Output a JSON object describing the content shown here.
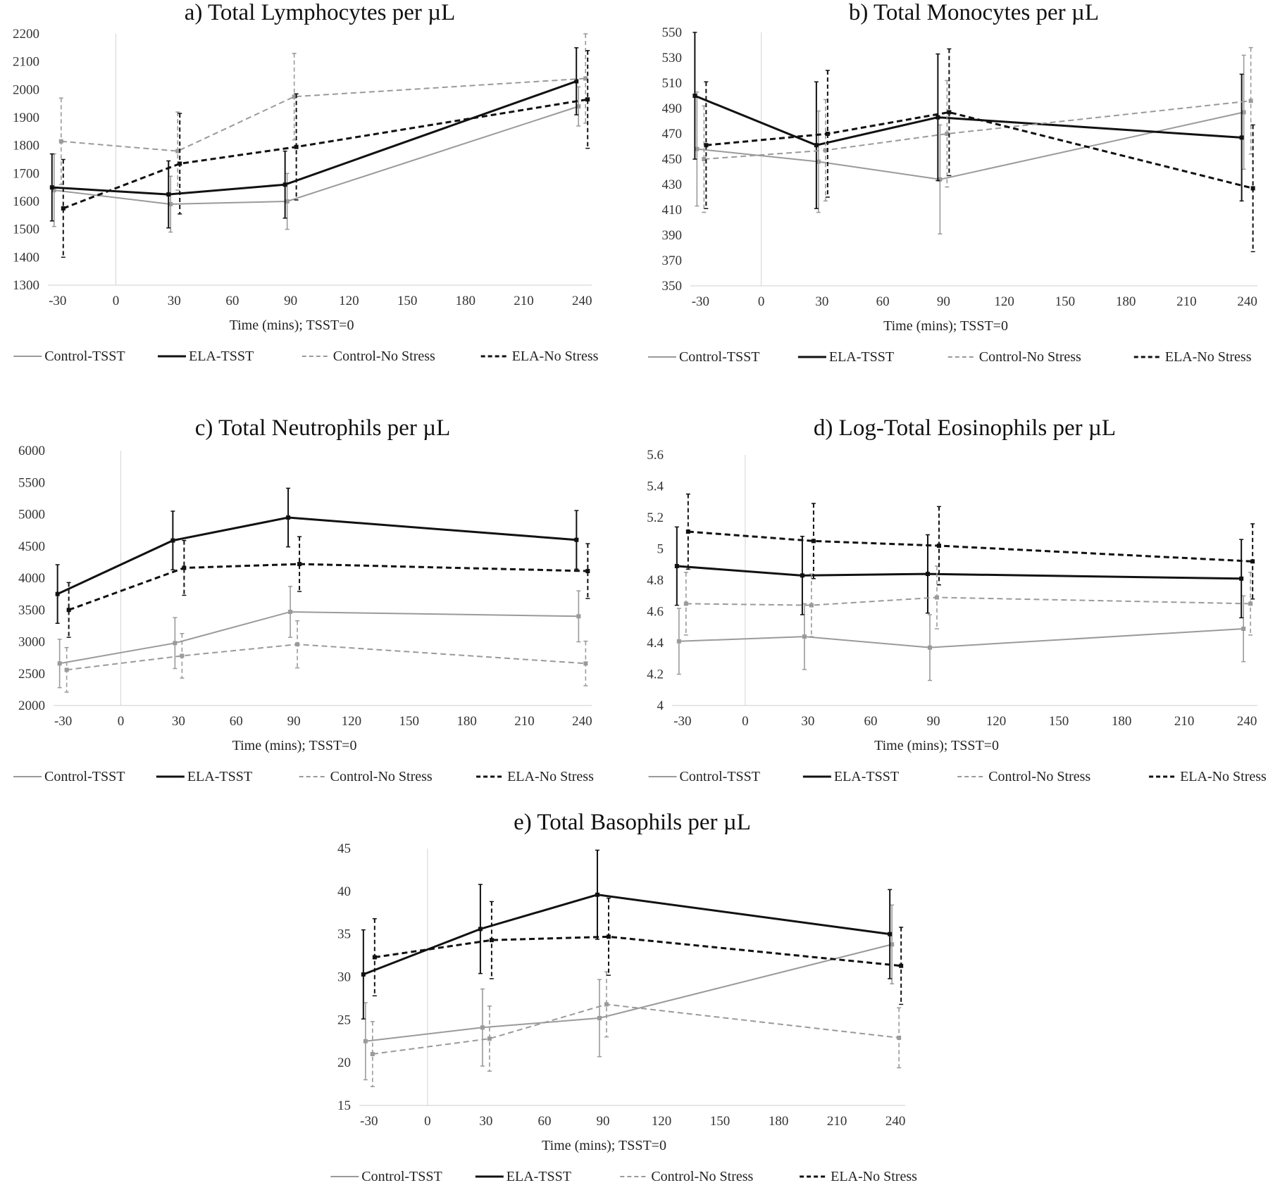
{
  "series_styles": {
    "Control-TSST": {
      "color": "#9a9a9a",
      "dashed": false
    },
    "ELA-TSST": {
      "color": "#111111",
      "dashed": false
    },
    "Control-No Stress": {
      "color": "#9a9a9a",
      "dashed": true
    },
    "ELA-No Stress": {
      "color": "#111111",
      "dashed": true
    }
  },
  "chart_data": [
    {
      "type": "line",
      "title": "a) Total Lymphocytes per µL",
      "xlabel": "Time (mins); TSST=0",
      "ylabel": "",
      "x": [
        -30,
        30,
        90,
        240
      ],
      "xticks": [
        -30,
        0,
        30,
        60,
        90,
        120,
        150,
        180,
        210,
        240
      ],
      "ylim": [
        1300,
        2200
      ],
      "yticks": [
        1300,
        1400,
        1500,
        1600,
        1700,
        1800,
        1900,
        2000,
        2100,
        2200
      ],
      "legend": "bottom",
      "series": [
        {
          "name": "Control-TSST",
          "values": [
            1640,
            1590,
            1600,
            1940
          ],
          "err": [
            130,
            100,
            100,
            70
          ]
        },
        {
          "name": "ELA-TSST",
          "values": [
            1650,
            1625,
            1660,
            2030
          ],
          "err": [
            120,
            120,
            120,
            120
          ]
        },
        {
          "name": "Control-No Stress",
          "values": [
            1815,
            1780,
            1975,
            2040
          ],
          "err": [
            155,
            140,
            155,
            160
          ]
        },
        {
          "name": "ELA-No Stress",
          "values": [
            1575,
            1735,
            1795,
            1965
          ],
          "err": [
            175,
            180,
            190,
            175
          ]
        }
      ]
    },
    {
      "type": "line",
      "title": "b) Total Monocytes per µL",
      "xlabel": "Time (mins); TSST=0",
      "ylabel": "",
      "x": [
        -30,
        30,
        90,
        240
      ],
      "xticks": [
        -30,
        0,
        30,
        60,
        90,
        120,
        150,
        180,
        210,
        240
      ],
      "ylim": [
        350,
        550
      ],
      "yticks": [
        350,
        370,
        390,
        410,
        430,
        450,
        470,
        490,
        510,
        530,
        550
      ],
      "legend": "bottom",
      "series": [
        {
          "name": "Control-TSST",
          "values": [
            458,
            448,
            434,
            487
          ],
          "err": [
            45,
            40,
            43,
            45
          ]
        },
        {
          "name": "ELA-TSST",
          "values": [
            500,
            461,
            483,
            467
          ],
          "err": [
            50,
            50,
            50,
            50
          ]
        },
        {
          "name": "Control-No Stress",
          "values": [
            450,
            457,
            470,
            496
          ],
          "err": [
            42,
            40,
            42,
            42
          ]
        },
        {
          "name": "ELA-No Stress",
          "values": [
            461,
            470,
            487,
            427
          ],
          "err": [
            50,
            50,
            50,
            50
          ]
        }
      ]
    },
    {
      "type": "line",
      "title": "c) Total Neutrophils per µL",
      "xlabel": "Time (mins); TSST=0",
      "ylabel": "",
      "x": [
        -30,
        30,
        90,
        240
      ],
      "xticks": [
        -30,
        0,
        30,
        60,
        90,
        120,
        150,
        180,
        210,
        240
      ],
      "ylim": [
        2000,
        6000
      ],
      "yticks": [
        2000,
        2500,
        3000,
        3500,
        4000,
        4500,
        5000,
        5500,
        6000
      ],
      "legend": "bottom",
      "series": [
        {
          "name": "Control-TSST",
          "values": [
            2660,
            2980,
            3470,
            3400
          ],
          "err": [
            380,
            400,
            400,
            400
          ]
        },
        {
          "name": "ELA-TSST",
          "values": [
            3750,
            4590,
            4950,
            4600
          ],
          "err": [
            460,
            460,
            460,
            460
          ]
        },
        {
          "name": "Control-No Stress",
          "values": [
            2560,
            2780,
            2960,
            2660
          ],
          "err": [
            350,
            350,
            370,
            350
          ]
        },
        {
          "name": "ELA-No Stress",
          "values": [
            3500,
            4160,
            4220,
            4110
          ],
          "err": [
            430,
            430,
            430,
            430
          ]
        }
      ]
    },
    {
      "type": "line",
      "title": "d) Log-Total Eosinophils per µL",
      "xlabel": "Time (mins); TSST=0",
      "ylabel": "",
      "x": [
        -30,
        30,
        90,
        240
      ],
      "xticks": [
        -30,
        0,
        30,
        60,
        90,
        120,
        150,
        180,
        210,
        240
      ],
      "ylim": [
        4,
        5.6
      ],
      "yticks": [
        4,
        4.2,
        4.4,
        4.6,
        4.8,
        5,
        5.2,
        5.4,
        5.6
      ],
      "ytick_labels": [
        "4",
        "4.2",
        "4.4",
        "4.6",
        "4.8",
        "5",
        "5.2",
        "5.4",
        "5.6"
      ],
      "legend": "bottom",
      "series": [
        {
          "name": "Control-TSST",
          "values": [
            4.41,
            4.44,
            4.37,
            4.49
          ],
          "err": [
            0.21,
            0.21,
            0.21,
            0.21
          ]
        },
        {
          "name": "ELA-TSST",
          "values": [
            4.89,
            4.83,
            4.84,
            4.81
          ],
          "err": [
            0.25,
            0.25,
            0.25,
            0.25
          ]
        },
        {
          "name": "Control-No Stress",
          "values": [
            4.65,
            4.64,
            4.69,
            4.65
          ],
          "err": [
            0.2,
            0.2,
            0.2,
            0.2
          ]
        },
        {
          "name": "ELA-No Stress",
          "values": [
            5.11,
            5.05,
            5.02,
            4.92
          ],
          "err": [
            0.24,
            0.24,
            0.25,
            0.24
          ]
        }
      ]
    },
    {
      "type": "line",
      "title": "e) Total Basophils per µL",
      "xlabel": "Time (mins); TSST=0",
      "ylabel": "",
      "x": [
        -30,
        30,
        90,
        240
      ],
      "xticks": [
        -30,
        0,
        30,
        60,
        90,
        120,
        150,
        180,
        210,
        240
      ],
      "ylim": [
        15,
        45
      ],
      "yticks": [
        15,
        20,
        25,
        30,
        35,
        40,
        45
      ],
      "legend": "bottom",
      "series": [
        {
          "name": "Control-TSST",
          "values": [
            22.5,
            24.1,
            25.2,
            33.8
          ],
          "err": [
            4.5,
            4.5,
            4.5,
            4.6
          ]
        },
        {
          "name": "ELA-TSST",
          "values": [
            30.3,
            35.6,
            39.6,
            35
          ],
          "err": [
            5.2,
            5.2,
            5.2,
            5.2
          ]
        },
        {
          "name": "Control-No Stress",
          "values": [
            21,
            22.8,
            26.8,
            22.9
          ],
          "err": [
            3.8,
            3.8,
            3.8,
            3.5
          ]
        },
        {
          "name": "ELA-No Stress",
          "values": [
            32.3,
            34.3,
            34.7,
            31.3
          ],
          "err": [
            4.5,
            4.5,
            4.5,
            4.5
          ]
        }
      ]
    }
  ]
}
